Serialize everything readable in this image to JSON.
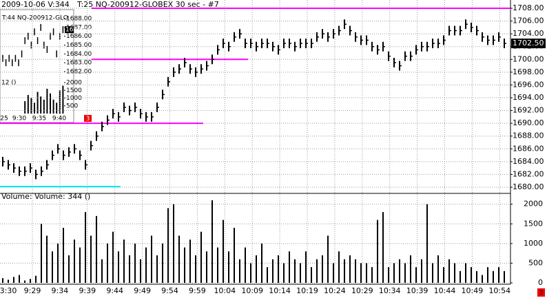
{
  "header": {
    "left": "2009-10-06  V:344",
    "title": "T:25  NQ-200912-GLOBEX  30 sec  - #7"
  },
  "chart_data": {
    "type": "ohlc",
    "high": [
      1684.75,
      1684.25,
      1683.75,
      1683.25,
      1683.25,
      1683.75,
      1682.75,
      1683.25,
      1684.25,
      1685.75,
      1686.75,
      1685.75,
      1686.25,
      1686.75,
      1685.75,
      1684.25,
      1687.25,
      1688.75,
      1690.25,
      1691.25,
      1692.25,
      1691.75,
      1693.25,
      1692.75,
      1693.25,
      1692.25,
      1691.75,
      1691.75,
      1693.25,
      1695.25,
      1697.25,
      1698.75,
      1699.25,
      1700.25,
      1699.25,
      1698.75,
      1699.25,
      1699.75,
      1700.75,
      1702.25,
      1703.25,
      1702.75,
      1704.25,
      1704.75,
      1703.25,
      1703.25,
      1702.75,
      1703.25,
      1703.25,
      1702.75,
      1702.25,
      1703.25,
      1703.25,
      1702.75,
      1703.25,
      1703.25,
      1703.25,
      1704.25,
      1704.75,
      1704.25,
      1704.75,
      1705.25,
      1706.25,
      1705.25,
      1704.25,
      1703.75,
      1703.75,
      1702.75,
      1702.25,
      1702.75,
      1701.25,
      1700.25,
      1699.75,
      1701.25,
      1701.25,
      1702.25,
      1702.75,
      1702.75,
      1703.25,
      1703.25,
      1703.75,
      1705.25,
      1705.25,
      1705.25,
      1706.25,
      1705.75,
      1705.25,
      1704.25,
      1703.75,
      1703.75,
      1704.25,
      1703.25
    ],
    "low": [
      1683.25,
      1682.75,
      1682.25,
      1681.75,
      1681.75,
      1682.25,
      1681.25,
      1681.75,
      1682.75,
      1684.25,
      1685.25,
      1684.25,
      1684.75,
      1685.25,
      1684.25,
      1682.75,
      1685.75,
      1687.25,
      1688.75,
      1689.75,
      1690.75,
      1690.25,
      1691.75,
      1691.25,
      1691.75,
      1690.75,
      1690.25,
      1690.25,
      1691.75,
      1693.75,
      1695.75,
      1697.25,
      1697.75,
      1698.75,
      1697.75,
      1697.25,
      1697.75,
      1698.25,
      1699.25,
      1700.75,
      1701.75,
      1701.25,
      1702.75,
      1703.25,
      1701.75,
      1701.75,
      1701.25,
      1701.75,
      1701.75,
      1701.25,
      1700.75,
      1701.75,
      1701.75,
      1701.25,
      1701.75,
      1701.75,
      1701.75,
      1702.75,
      1703.25,
      1702.75,
      1703.25,
      1703.75,
      1704.75,
      1703.75,
      1702.75,
      1702.25,
      1702.25,
      1701.25,
      1700.75,
      1701.25,
      1699.75,
      1698.75,
      1698.25,
      1699.75,
      1699.75,
      1700.75,
      1701.25,
      1701.25,
      1701.75,
      1701.75,
      1702.25,
      1703.75,
      1703.75,
      1703.75,
      1704.75,
      1704.25,
      1703.75,
      1702.75,
      1702.25,
      1702.25,
      1702.75,
      1701.75
    ],
    "close": [
      1684,
      1683.5,
      1683,
      1682.5,
      1682.5,
      1683,
      1682,
      1682.5,
      1683.5,
      1685,
      1686,
      1685,
      1685.5,
      1686,
      1685,
      1683.5,
      1686.5,
      1688,
      1689.5,
      1690.5,
      1691.5,
      1691,
      1692.5,
      1692,
      1692.5,
      1691.5,
      1691,
      1691,
      1692.5,
      1694.5,
      1696.5,
      1698,
      1698.5,
      1699.5,
      1698.5,
      1698,
      1698.5,
      1699,
      1700,
      1701.5,
      1702.5,
      1702,
      1703.5,
      1704,
      1702.5,
      1702.5,
      1702,
      1702.5,
      1702.5,
      1702,
      1701.5,
      1702.5,
      1702.5,
      1702,
      1702.5,
      1702.5,
      1702.5,
      1703.5,
      1704,
      1703.5,
      1704,
      1704.5,
      1705.5,
      1704.5,
      1703.5,
      1703,
      1703,
      1702,
      1701.5,
      1702,
      1700.5,
      1699.5,
      1699,
      1700.5,
      1700.5,
      1701.5,
      1702,
      1702,
      1702.5,
      1702.5,
      1703,
      1704.5,
      1704.5,
      1704.5,
      1705.5,
      1705,
      1704.5,
      1703.5,
      1703,
      1703,
      1703.5,
      1702.5
    ],
    "volume": [
      120,
      80,
      150,
      200,
      60,
      100,
      180,
      1500,
      1200,
      800,
      1000,
      1400,
      700,
      1100,
      900,
      1800,
      1200,
      1700,
      600,
      1000,
      1300,
      800,
      1100,
      700,
      1000,
      600,
      900,
      1200,
      700,
      1000,
      1900,
      2000,
      1200,
      900,
      1100,
      700,
      1300,
      800,
      2100,
      900,
      1600,
      800,
      1400,
      600,
      900,
      500,
      700,
      1000,
      400,
      600,
      700,
      500,
      800,
      600,
      500,
      800,
      400,
      600,
      700,
      1200,
      500,
      800,
      600,
      700,
      600,
      500,
      500,
      400,
      1600,
      1800,
      400,
      500,
      600,
      500,
      700,
      400,
      600,
      2000,
      500,
      700,
      400,
      600,
      500,
      300,
      500,
      400,
      300,
      200,
      400,
      300,
      400,
      300
    ],
    "color": "#000000",
    "ylim": [
      1680,
      1708
    ],
    "yticks": [
      {
        "value": 1680,
        "label": "1680.00"
      },
      {
        "value": 1682,
        "label": "1682.00"
      },
      {
        "value": 1684,
        "label": "1684.00"
      },
      {
        "value": 1686,
        "label": "1686.00"
      },
      {
        "value": 1688,
        "label": "1688.00"
      },
      {
        "value": 1690,
        "label": "1690.00"
      },
      {
        "value": 1692,
        "label": "1692.00"
      },
      {
        "value": 1694,
        "label": "1694.00"
      },
      {
        "value": 1696,
        "label": "1696.00"
      },
      {
        "value": 1698,
        "label": "1698.00"
      },
      {
        "value": 1700,
        "label": "1700.00"
      },
      {
        "value": 1702,
        "label": "1702.00"
      },
      {
        "value": 1704,
        "label": "1704.00"
      },
      {
        "value": 1706,
        "label": "1706.00"
      },
      {
        "value": 1708,
        "label": "1708.00"
      }
    ],
    "last_price": {
      "value": 1702.5,
      "label": "1702.50"
    },
    "levels": [
      {
        "value": 1708,
        "color": "#ff00ff"
      },
      {
        "value": 1700,
        "color": "#ff00ff"
      },
      {
        "value": 1690,
        "color": "#ff00ff"
      },
      {
        "value": 1680.1,
        "color": "#00e5ee"
      }
    ],
    "volume_label": "Volume:  Volume: 344  ()",
    "vlim": [
      0,
      2100
    ],
    "vticks": [
      0,
      500,
      1000,
      1500,
      2000
    ],
    "xticks": [
      "3:30",
      "9:29",
      "9:34",
      "9:39",
      "9:44",
      "9:49",
      "9:54",
      "9:59",
      "10:04",
      "10:09",
      "10:14",
      "10:19",
      "10:24",
      "10:29",
      "10:34",
      "10:39",
      "10:44",
      "10:49",
      "10:54"
    ],
    "grid": true
  },
  "inset": {
    "title": "T:44  NQ-200912-GLO",
    "close": [
      1683.5,
      1683,
      1683.5,
      1683,
      1683.5,
      1683,
      1684,
      1685.5,
      1686,
      1685,
      1686.5,
      1685.5,
      1687,
      1685,
      1684.5,
      1686,
      1686.5,
      1684,
      1686,
      1686.75
    ],
    "volume": [
      0,
      0,
      0,
      0,
      0,
      0,
      0,
      800,
      1200,
      1000,
      700,
      1400,
      1100,
      900,
      1600,
      1300,
      900,
      700,
      1500,
      1800
    ],
    "ylim": [
      1682,
      1688
    ],
    "yticks": [
      {
        "value": 1682,
        "label": "1682.00"
      },
      {
        "value": 1683,
        "label": "1683.00"
      },
      {
        "value": 1684,
        "label": "1684.00"
      },
      {
        "value": 1685,
        "label": "1685.00"
      },
      {
        "value": 1686,
        "label": "1686.00"
      },
      {
        "value": 1687,
        "label": "1687.00"
      },
      {
        "value": 1688,
        "label": "1688.00"
      }
    ],
    "last_price": {
      "value": 1686.75,
      "label": "1686.75"
    },
    "vlim": [
      0,
      2000
    ],
    "vticks": [
      500,
      1000,
      1500,
      2000
    ],
    "volume_label": "12  ()",
    "xticks": [
      "25",
      "9:30",
      "9:35",
      "9:40"
    ]
  },
  "badges": [
    "3",
    "3"
  ]
}
